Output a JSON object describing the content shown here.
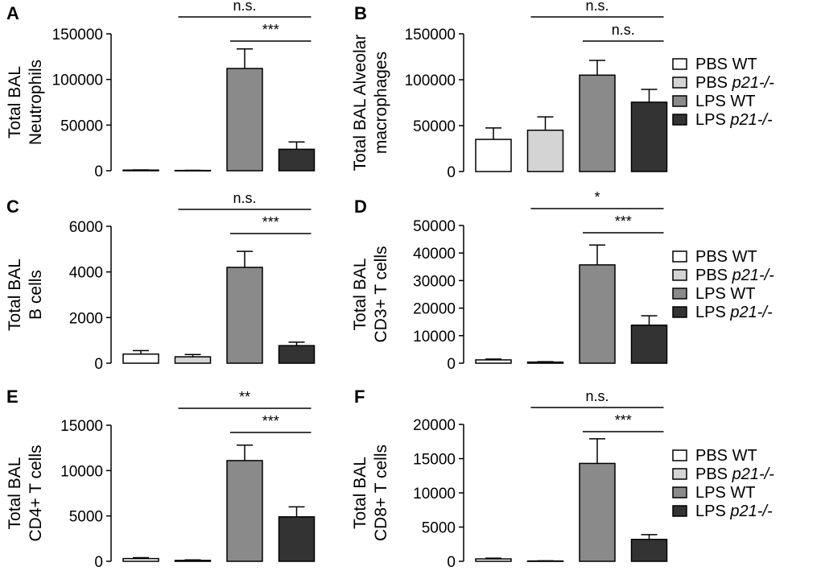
{
  "colors": {
    "PBS WT": "#ffffff",
    "PBS p21-/-": "#d4d4d4",
    "LPS WT": "#8a8a8a",
    "LPS p21-/-": "#333333",
    "stroke": "#000000"
  },
  "legend_entries": [
    {
      "prefix": "PBS ",
      "label": "WT",
      "italic": false,
      "group": "PBS WT"
    },
    {
      "prefix": "PBS ",
      "label": "p21-/-",
      "italic": true,
      "group": "PBS p21-/-"
    },
    {
      "prefix": "LPS ",
      "label": "WT",
      "italic": false,
      "group": "LPS WT"
    },
    {
      "prefix": "LPS ",
      "label": "p21-/-",
      "italic": true,
      "group": "LPS p21-/-"
    }
  ],
  "chart_data": [
    {
      "type": "bar",
      "panel": "A",
      "ylabel": [
        "Total BAL",
        "Neutrophils"
      ],
      "categories": [
        "PBS WT",
        "PBS p21-/-",
        "LPS WT",
        "LPS p21-/-"
      ],
      "values": [
        700,
        300,
        112000,
        23500
      ],
      "errors": [
        200,
        100,
        21500,
        8000
      ],
      "ylim": [
        0,
        150000
      ],
      "yticks": [
        0,
        50000,
        100000,
        150000
      ],
      "significance": [
        {
          "from": 1,
          "to": 3,
          "label": "n.s.",
          "level": 1
        },
        {
          "from": 2,
          "to": 3,
          "label": "***",
          "level": 0
        }
      ]
    },
    {
      "type": "bar",
      "panel": "B",
      "ylabel": [
        "Total BAL Alveolar",
        "macrophages"
      ],
      "categories": [
        "PBS WT",
        "PBS p21-/-",
        "LPS WT",
        "LPS p21-/-"
      ],
      "values": [
        35000,
        45000,
        105000,
        75500
      ],
      "errors": [
        12500,
        14500,
        16000,
        14000
      ],
      "ylim": [
        0,
        150000
      ],
      "yticks": [
        0,
        50000,
        100000,
        150000
      ],
      "significance": [
        {
          "from": 1,
          "to": 3,
          "label": "n.s.",
          "level": 1
        },
        {
          "from": 2,
          "to": 3,
          "label": "n.s.",
          "level": 0
        }
      ]
    },
    {
      "type": "bar",
      "panel": "C",
      "ylabel": [
        "Total BAL",
        "B cells"
      ],
      "categories": [
        "PBS WT",
        "PBS p21-/-",
        "LPS WT",
        "LPS p21-/-"
      ],
      "values": [
        400,
        280,
        4200,
        770
      ],
      "errors": [
        150,
        100,
        700,
        150
      ],
      "ylim": [
        0,
        6000
      ],
      "yticks": [
        0,
        2000,
        4000,
        6000
      ],
      "significance": [
        {
          "from": 1,
          "to": 3,
          "label": "n.s.",
          "level": 1
        },
        {
          "from": 2,
          "to": 3,
          "label": "***",
          "level": 0
        }
      ]
    },
    {
      "type": "bar",
      "panel": "D",
      "ylabel": [
        "Total BAL",
        "CD3+ T cells"
      ],
      "categories": [
        "PBS WT",
        "PBS p21-/-",
        "LPS WT",
        "LPS p21-/-"
      ],
      "values": [
        1200,
        400,
        35700,
        13800
      ],
      "errors": [
        300,
        150,
        7200,
        3400
      ],
      "ylim": [
        0,
        50000
      ],
      "yticks": [
        0,
        10000,
        20000,
        30000,
        40000,
        50000
      ],
      "significance": [
        {
          "from": 1,
          "to": 3,
          "label": "*",
          "level": 1
        },
        {
          "from": 2,
          "to": 3,
          "label": "***",
          "level": 0
        }
      ]
    },
    {
      "type": "bar",
      "panel": "E",
      "ylabel": [
        "Total BAL",
        "CD4+ T cells"
      ],
      "categories": [
        "PBS WT",
        "PBS p21-/-",
        "LPS WT",
        "LPS p21-/-"
      ],
      "values": [
        300,
        100,
        11100,
        4900
      ],
      "errors": [
        100,
        50,
        1700,
        1100
      ],
      "ylim": [
        0,
        15000
      ],
      "yticks": [
        0,
        5000,
        10000,
        15000
      ],
      "significance": [
        {
          "from": 1,
          "to": 3,
          "label": "**",
          "level": 1
        },
        {
          "from": 2,
          "to": 3,
          "label": "***",
          "level": 0
        }
      ]
    },
    {
      "type": "bar",
      "panel": "F",
      "ylabel": [
        "Total BAL",
        "CD8+ T cells"
      ],
      "categories": [
        "PBS WT",
        "PBS p21-/-",
        "LPS WT",
        "LPS p21-/-"
      ],
      "values": [
        350,
        50,
        14300,
        3200
      ],
      "errors": [
        100,
        30,
        3600,
        700
      ],
      "ylim": [
        0,
        20000
      ],
      "yticks": [
        0,
        5000,
        10000,
        15000,
        20000
      ],
      "significance": [
        {
          "from": 1,
          "to": 3,
          "label": "n.s.",
          "level": 1
        },
        {
          "from": 2,
          "to": 3,
          "label": "***",
          "level": 0
        }
      ]
    }
  ]
}
